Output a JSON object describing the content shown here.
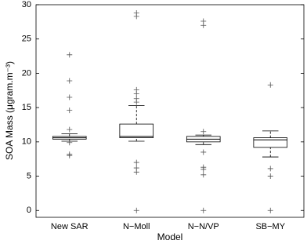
{
  "chart_data": {
    "type": "box",
    "xlabel": "Model",
    "ylabel": "SOA Mass (μgram.m⁻³)",
    "categories": [
      "New SAR",
      "N−Moll",
      "N−N/VP",
      "SB−MY"
    ],
    "boxes": [
      {
        "whisker_low": 10.1,
        "q1": 10.4,
        "median": 10.6,
        "q3": 10.8,
        "whisker_high": 11.2,
        "outliers": [
          22.7,
          18.9,
          16.5,
          14.6,
          11.8,
          9.9,
          8.2,
          8.0
        ]
      },
      {
        "whisker_low": 10.1,
        "q1": 10.6,
        "median": 10.8,
        "q3": 12.6,
        "whisker_high": 15.3,
        "outliers": [
          28.8,
          28.3,
          17.6,
          17.0,
          16.3,
          15.8,
          7.0,
          6.2,
          5.6,
          0
        ]
      },
      {
        "whisker_low": 9.6,
        "q1": 10.0,
        "median": 10.4,
        "q3": 10.8,
        "whisker_high": 11.0,
        "outliers": [
          27.6,
          27.0,
          11.5,
          8.5,
          6.3,
          6.0,
          5.2,
          0
        ]
      },
      {
        "whisker_low": 7.8,
        "q1": 9.2,
        "median": 10.3,
        "q3": 10.6,
        "whisker_high": 11.6,
        "outliers": [
          18.3,
          6.1,
          5.0,
          0
        ]
      }
    ],
    "color": "#000000",
    "ylim": [
      -1,
      30
    ],
    "yticks": [
      0,
      5,
      10,
      15,
      20,
      25,
      30
    ]
  }
}
